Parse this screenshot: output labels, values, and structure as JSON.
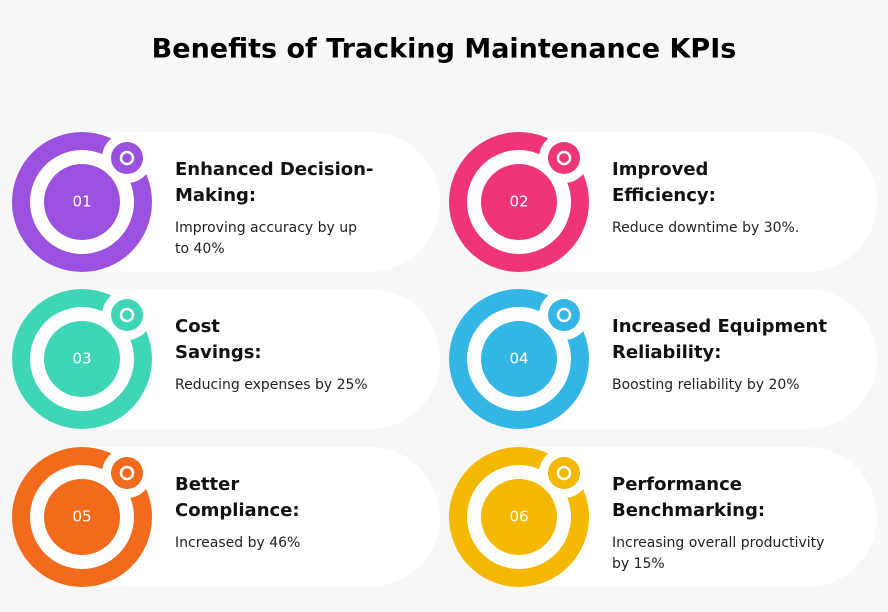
{
  "title": "Benefits of Tracking Maintenance KPIs",
  "items": [
    {
      "number": "01",
      "color": "#9b51e0",
      "title_lines": [
        "Enhanced Decision-",
        "Making:"
      ],
      "description_lines": [
        "Improving accuracy by up",
        "to 40%"
      ]
    },
    {
      "number": "02",
      "color": "#f0347a",
      "title_lines": [
        "Improved",
        "Efficiency:"
      ],
      "description_lines": [
        "Reduce downtime by 30%."
      ]
    },
    {
      "number": "03",
      "color": "#3fd6b8",
      "title_lines": [
        "Cost",
        "Savings:"
      ],
      "description_lines": [
        "Reducing expenses by 25%"
      ]
    },
    {
      "number": "04",
      "color": "#33b5e5",
      "title_lines": [
        "Increased Equipment",
        "Reliability:"
      ],
      "description_lines": [
        "Boosting reliability by 20%"
      ]
    },
    {
      "number": "05",
      "color": "#f26a1b",
      "title_lines": [
        "Better",
        "Compliance:"
      ],
      "description_lines": [
        "Increased by 46%"
      ]
    },
    {
      "number": "06",
      "color": "#f5b800",
      "title_lines": [
        "Performance",
        "Benchmarking:"
      ],
      "description_lines": [
        "Increasing overall productivity",
        "by 15%"
      ]
    }
  ]
}
